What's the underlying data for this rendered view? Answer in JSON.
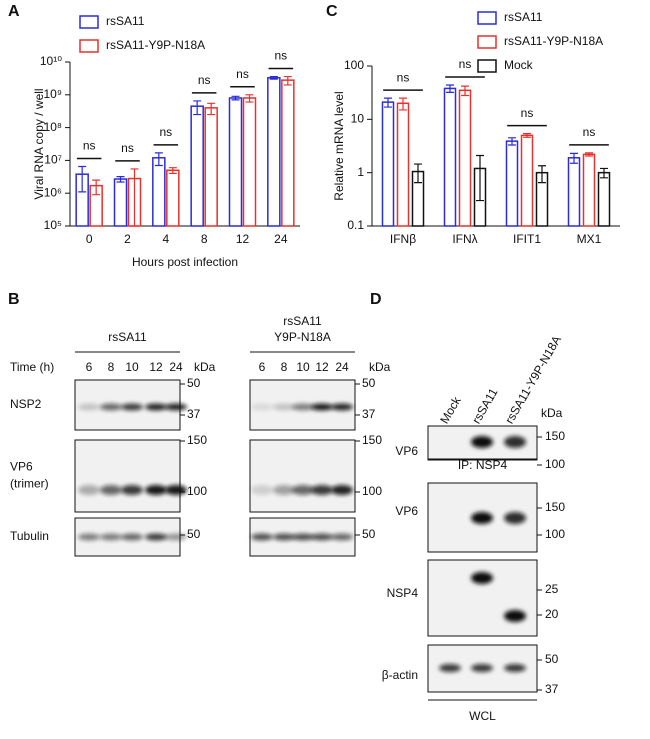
{
  "chart_data": [
    {
      "type": "bar",
      "panel_label": "A",
      "y_label": "Viral RNA copy / well",
      "x_label": "Hours post infection",
      "categories": [
        "0",
        "2",
        "4",
        "8",
        "12",
        "24"
      ],
      "series": [
        {
          "name": "rsSA11",
          "color": "#2b2bd9",
          "values": [
            3800000,
            2700000,
            12000000,
            450000000,
            800000000,
            3300000000
          ],
          "errors": [
            2700000,
            500000,
            5000000,
            200000000,
            100000000,
            300000000
          ]
        },
        {
          "name": "rsSA11-Y9P-N18A",
          "color": "#e8302c",
          "values": [
            1700000,
            2800000,
            5000000,
            400000000,
            800000000,
            2800000000
          ],
          "errors": [
            800000,
            2700000,
            1000000,
            150000000,
            200000000,
            800000000
          ]
        }
      ],
      "annotations": [
        "ns",
        "ns",
        "ns",
        "ns",
        "ns",
        "ns"
      ],
      "log_y": true,
      "ylim": [
        100000,
        10000000000
      ],
      "yticks": [
        {
          "value": 100000,
          "label": "10⁵"
        },
        {
          "value": 1000000,
          "label": "10⁶"
        },
        {
          "value": 10000000,
          "label": "10⁷"
        },
        {
          "value": 100000000,
          "label": "10⁸"
        },
        {
          "value": 1000000000,
          "label": "10⁹"
        },
        {
          "value": 10000000000,
          "label": "10¹⁰"
        }
      ]
    },
    {
      "type": "bar",
      "panel_label": "C",
      "y_label": "Relative mRNA level",
      "categories": [
        "IFNβ",
        "IFNλ",
        "IFIT1",
        "MX1"
      ],
      "series": [
        {
          "name": "rsSA11",
          "color": "#2b2bd9",
          "values": [
            21,
            38,
            3.9,
            1.9
          ],
          "errors": [
            4,
            6,
            0.6,
            0.4
          ]
        },
        {
          "name": "rsSA11-Y9P-N18A",
          "color": "#e8302c",
          "values": [
            20,
            35,
            5.0,
            2.2
          ],
          "errors": [
            5,
            7,
            0.4,
            0.15
          ]
        },
        {
          "name": "Mock",
          "color": "#111111",
          "values": [
            1.05,
            1.2,
            1.0,
            1.0
          ],
          "errors": [
            0.4,
            0.9,
            0.35,
            0.2
          ]
        }
      ],
      "annotations": [
        "ns",
        "ns",
        "ns",
        "ns"
      ],
      "log_y": true,
      "ylim": [
        0.1,
        100
      ],
      "yticks": [
        0.1,
        1,
        10,
        100
      ]
    }
  ],
  "panel_b": {
    "label": "B",
    "time_label": "Time (h)",
    "groups": [
      {
        "title": [
          "rsSA11"
        ],
        "times": [
          "6",
          "8",
          "10",
          "12",
          "24"
        ],
        "kda": "kDa"
      },
      {
        "title": [
          "rsSA11",
          "Y9P-N18A"
        ],
        "times": [
          "6",
          "8",
          "10",
          "12",
          "24"
        ],
        "kda": "kDa"
      }
    ],
    "rows": [
      {
        "label": [
          "NSP2"
        ],
        "markers": [
          "50",
          "37"
        ]
      },
      {
        "label": [
          "VP6",
          "(trimer)"
        ],
        "markers": [
          "150",
          "100"
        ]
      },
      {
        "label": [
          "Tubulin"
        ],
        "markers": [
          "50"
        ]
      }
    ]
  },
  "panel_d": {
    "label": "D",
    "lanes": [
      "Mock",
      "rsSA11",
      "rsSA11-Y9P-N18A"
    ],
    "kda": "kDa",
    "rows": [
      {
        "label": "VP6",
        "markers": [
          "150",
          "100"
        ]
      },
      {
        "label": "VP6",
        "markers": [
          "150",
          "100"
        ]
      },
      {
        "label": "NSP4",
        "markers": [
          "25",
          "20"
        ]
      },
      {
        "label": "β-actin",
        "markers": [
          "50",
          "37"
        ]
      }
    ],
    "captions": [
      "IP: NSP4",
      "WCL"
    ]
  }
}
